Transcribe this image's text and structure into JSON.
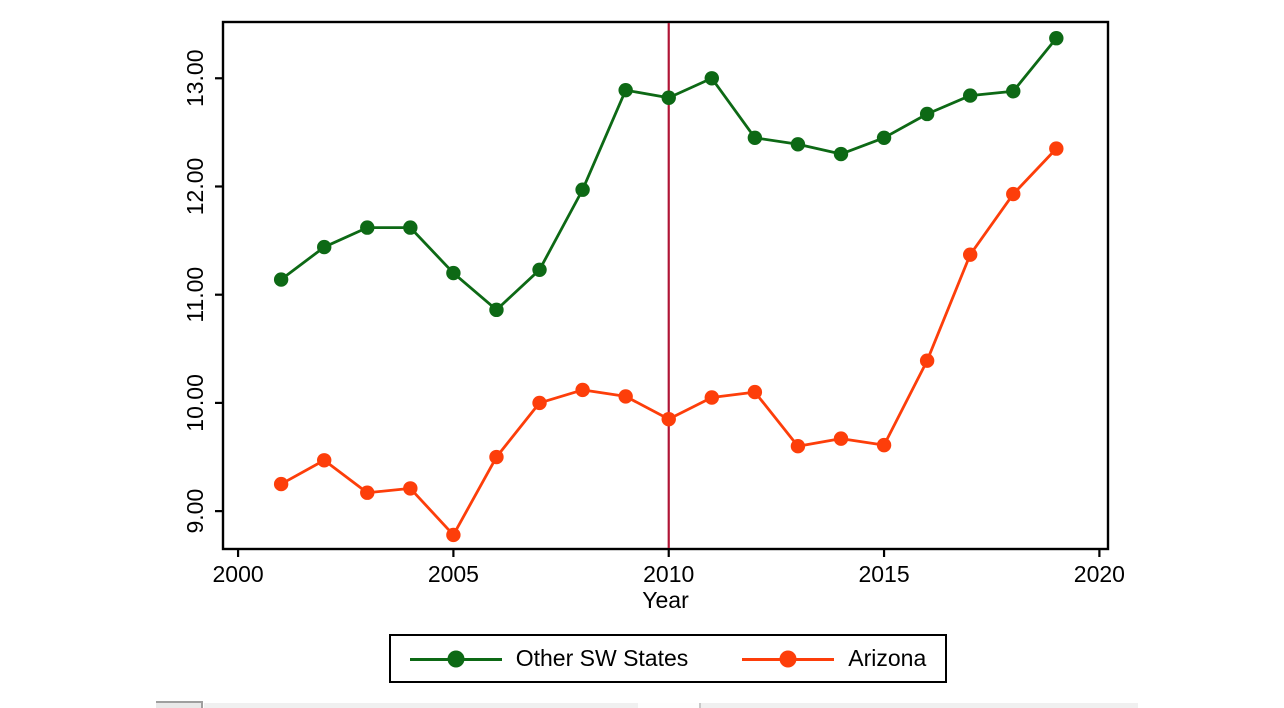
{
  "chart_data": {
    "type": "line",
    "title": "",
    "xlabel": "Year",
    "ylabel": "",
    "x_ticks": [
      {
        "value": 2000,
        "label": "2000"
      },
      {
        "value": 2005,
        "label": "2005"
      },
      {
        "value": 2010,
        "label": "2010"
      },
      {
        "value": 2015,
        "label": "2015"
      },
      {
        "value": 2020,
        "label": "2020"
      }
    ],
    "y_ticks": [
      {
        "value": 9,
        "label": "9.00"
      },
      {
        "value": 10,
        "label": "10.00"
      },
      {
        "value": 11,
        "label": "11.00"
      },
      {
        "value": 12,
        "label": "12.00"
      },
      {
        "value": 13,
        "label": "13.00"
      }
    ],
    "xlim": [
      1999.65,
      2020.2
    ],
    "ylim": [
      8.65,
      13.52
    ],
    "grid": false,
    "legend_position": "bottom-center",
    "x": [
      2001,
      2002,
      2003,
      2004,
      2005,
      2006,
      2007,
      2008,
      2009,
      2010,
      2011,
      2012,
      2013,
      2014,
      2015,
      2016,
      2017,
      2018,
      2019
    ],
    "series": [
      {
        "name": "Other SW States",
        "color": "#0d6915",
        "values": [
          11.14,
          11.44,
          11.62,
          11.62,
          11.2,
          10.86,
          11.23,
          11.97,
          12.89,
          12.82,
          13.0,
          12.45,
          12.39,
          12.3,
          12.45,
          12.67,
          12.84,
          12.88,
          13.37
        ]
      },
      {
        "name": "Arizona",
        "color": "#fd3e0a",
        "values": [
          9.25,
          9.47,
          9.17,
          9.21,
          8.78,
          9.5,
          10.0,
          10.12,
          10.06,
          9.85,
          10.05,
          10.1,
          9.6,
          9.67,
          9.61,
          10.39,
          11.37,
          11.93,
          12.35
        ]
      }
    ],
    "reference_line": {
      "x": 2010,
      "color": "#b01535"
    }
  },
  "colors": {
    "axis": "#000000",
    "background": "#ffffff",
    "legend_border": "#000000"
  }
}
